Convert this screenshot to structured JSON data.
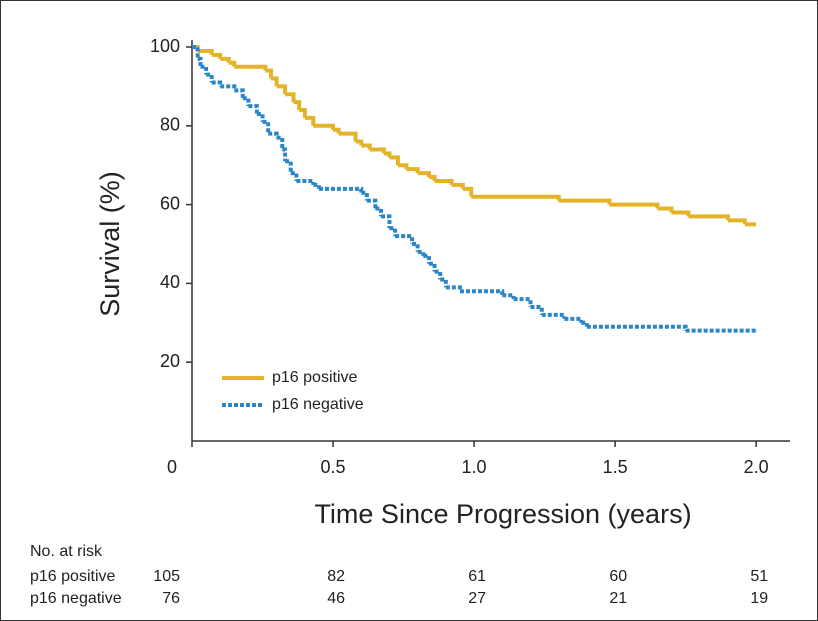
{
  "chart_data": {
    "type": "km",
    "ylabel": "Survival (%)",
    "xlabel": "Time Since Progression (years)",
    "xlim": [
      0,
      2.12
    ],
    "ylim": [
      0,
      100
    ],
    "xticks": [
      0,
      0.5,
      {
        "value": 1,
        "label": "1.0"
      },
      1.5,
      {
        "value": 2,
        "label": "2.0"
      }
    ],
    "yticks": [
      20,
      40,
      60,
      80,
      100
    ],
    "legend": "lower left",
    "series": [
      {
        "name": "p16 positive",
        "color": "#e3b32a",
        "dashed": false,
        "x": [
          0,
          0.02,
          0.07,
          0.1,
          0.13,
          0.15,
          0.26,
          0.28,
          0.3,
          0.33,
          0.36,
          0.38,
          0.4,
          0.43,
          0.5,
          0.52,
          0.58,
          0.6,
          0.63,
          0.68,
          0.7,
          0.73,
          0.76,
          0.8,
          0.84,
          0.86,
          0.92,
          0.96,
          0.99,
          1.3,
          1.48,
          1.65,
          1.7,
          1.76,
          1.9,
          1.96,
          2.0
        ],
        "values": [
          100,
          99,
          98,
          97,
          96,
          95,
          94,
          92,
          90,
          88,
          86,
          84,
          82,
          80,
          79,
          78,
          76,
          75,
          74,
          73,
          72,
          70,
          69,
          68,
          67,
          66,
          65,
          64,
          62,
          61,
          60,
          59,
          58,
          57,
          56,
          55,
          55
        ]
      },
      {
        "name": "p16 negative",
        "color": "#2a86c8",
        "dashed": true,
        "x": [
          0,
          0.02,
          0.03,
          0.05,
          0.07,
          0.1,
          0.15,
          0.18,
          0.2,
          0.23,
          0.25,
          0.27,
          0.3,
          0.32,
          0.33,
          0.35,
          0.37,
          0.43,
          0.45,
          0.6,
          0.62,
          0.65,
          0.67,
          0.7,
          0.72,
          0.78,
          0.8,
          0.82,
          0.84,
          0.86,
          0.88,
          0.9,
          0.95,
          1.1,
          1.14,
          1.2,
          1.24,
          1.32,
          1.38,
          1.4,
          1.75,
          2.0
        ],
        "values": [
          100,
          97,
          95,
          93,
          91,
          90,
          89,
          87,
          85,
          83,
          81,
          78,
          77,
          74,
          71,
          68,
          66,
          65,
          64,
          63,
          61,
          59,
          57,
          54,
          52,
          50,
          48,
          47,
          45,
          43,
          41,
          39,
          38,
          37,
          36,
          34,
          32,
          31,
          30,
          29,
          28,
          28
        ]
      }
    ],
    "risk_table": {
      "title": "No. at risk",
      "rows": [
        {
          "name": "p16 positive",
          "values": [
            105,
            82,
            61,
            60,
            51
          ]
        },
        {
          "name": "p16 negative",
          "values": [
            76,
            46,
            27,
            21,
            19
          ]
        }
      ]
    }
  }
}
